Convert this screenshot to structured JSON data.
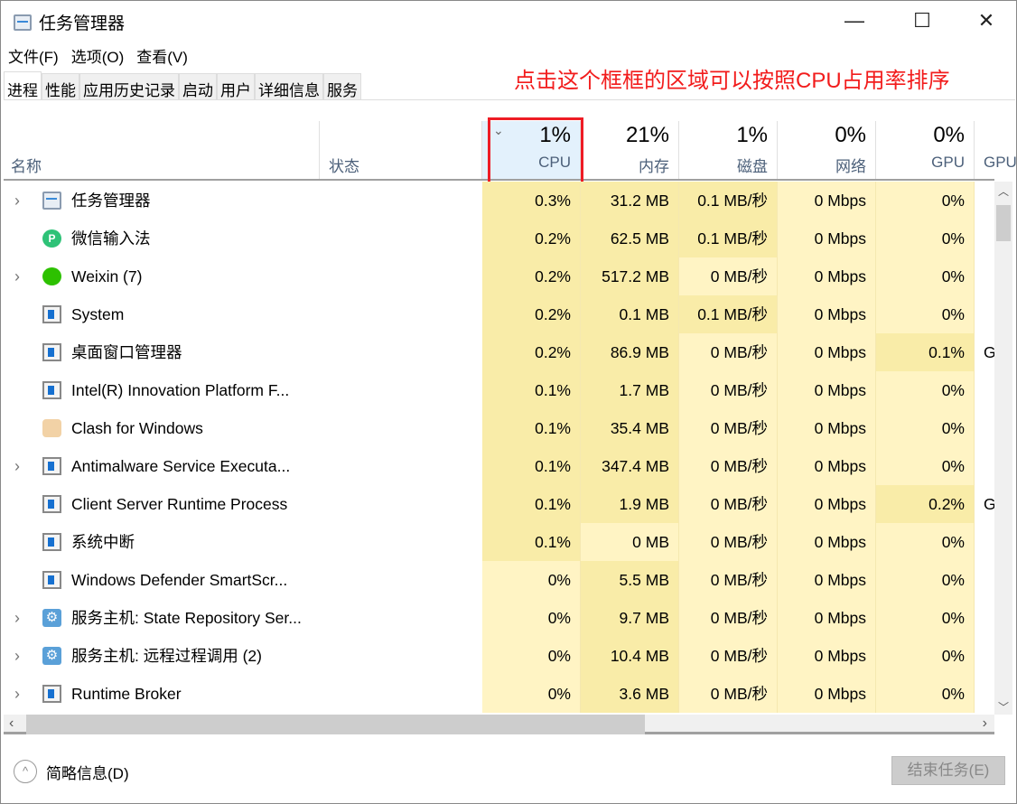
{
  "window": {
    "title": "任务管理器",
    "minimize": "—",
    "maximize": "☐",
    "close": "✕"
  },
  "menu": [
    "文件(F)",
    "选项(O)",
    "查看(V)"
  ],
  "tabs": [
    "进程",
    "性能",
    "应用历史记录",
    "启动",
    "用户",
    "详细信息",
    "服务"
  ],
  "annotation": "点击这个框框的区域可以按照CPU占用率排序",
  "annotation_color": "#f21c1c",
  "columns": {
    "name": "名称",
    "status": "状态",
    "cpu": {
      "pct": "1%",
      "label": "CPU",
      "sorted": true
    },
    "memory": {
      "pct": "21%",
      "label": "内存"
    },
    "disk": {
      "pct": "1%",
      "label": "磁盘"
    },
    "network": {
      "pct": "0%",
      "label": "网络"
    },
    "gpu": {
      "pct": "0%",
      "label": "GPU"
    },
    "gpu_engine": {
      "label": "GPU"
    }
  },
  "heat_colors": {
    "low": "#fff4c4",
    "high": "#f9eca8"
  },
  "rows": [
    {
      "expand": true,
      "icon": "task-manager-icon",
      "name": "任务管理器",
      "cpu": "0.3%",
      "mem": "31.2 MB",
      "disk": "0.1 MB/秒",
      "net": "0 Mbps",
      "gpu": "0%",
      "eng": "",
      "heat": [
        1,
        1,
        1,
        0,
        0
      ]
    },
    {
      "expand": false,
      "icon": "wechat-ime-icon",
      "name": "微信输入法",
      "cpu": "0.2%",
      "mem": "62.5 MB",
      "disk": "0.1 MB/秒",
      "net": "0 Mbps",
      "gpu": "0%",
      "eng": "",
      "heat": [
        1,
        1,
        1,
        0,
        0
      ]
    },
    {
      "expand": true,
      "icon": "weixin-icon",
      "name": "Weixin (7)",
      "cpu": "0.2%",
      "mem": "517.2 MB",
      "disk": "0 MB/秒",
      "net": "0 Mbps",
      "gpu": "0%",
      "eng": "",
      "heat": [
        1,
        1,
        0,
        0,
        0
      ]
    },
    {
      "expand": false,
      "icon": "window-icon",
      "name": "System",
      "cpu": "0.2%",
      "mem": "0.1 MB",
      "disk": "0.1 MB/秒",
      "net": "0 Mbps",
      "gpu": "0%",
      "eng": "",
      "heat": [
        1,
        1,
        1,
        0,
        0
      ]
    },
    {
      "expand": false,
      "icon": "window-icon",
      "name": "桌面窗口管理器",
      "cpu": "0.2%",
      "mem": "86.9 MB",
      "disk": "0 MB/秒",
      "net": "0 Mbps",
      "gpu": "0.1%",
      "eng": "G",
      "heat": [
        1,
        1,
        0,
        0,
        1
      ]
    },
    {
      "expand": false,
      "icon": "window-icon",
      "name": "Intel(R) Innovation Platform F...",
      "cpu": "0.1%",
      "mem": "1.7 MB",
      "disk": "0 MB/秒",
      "net": "0 Mbps",
      "gpu": "0%",
      "eng": "",
      "heat": [
        1,
        1,
        0,
        0,
        0
      ]
    },
    {
      "expand": false,
      "icon": "clash-cat-icon",
      "name": "Clash for Windows",
      "cpu": "0.1%",
      "mem": "35.4 MB",
      "disk": "0 MB/秒",
      "net": "0 Mbps",
      "gpu": "0%",
      "eng": "",
      "heat": [
        1,
        1,
        0,
        0,
        0
      ]
    },
    {
      "expand": true,
      "icon": "window-icon",
      "name": "Antimalware Service Executa...",
      "cpu": "0.1%",
      "mem": "347.4 MB",
      "disk": "0 MB/秒",
      "net": "0 Mbps",
      "gpu": "0%",
      "eng": "",
      "heat": [
        1,
        1,
        0,
        0,
        0
      ]
    },
    {
      "expand": false,
      "icon": "window-icon",
      "name": "Client Server Runtime Process",
      "cpu": "0.1%",
      "mem": "1.9 MB",
      "disk": "0 MB/秒",
      "net": "0 Mbps",
      "gpu": "0.2%",
      "eng": "G",
      "heat": [
        1,
        1,
        0,
        0,
        1
      ]
    },
    {
      "expand": false,
      "icon": "window-icon",
      "name": "系统中断",
      "cpu": "0.1%",
      "mem": "0 MB",
      "disk": "0 MB/秒",
      "net": "0 Mbps",
      "gpu": "0%",
      "eng": "",
      "heat": [
        1,
        0,
        0,
        0,
        0
      ]
    },
    {
      "expand": false,
      "icon": "window-icon",
      "name": "Windows Defender SmartScr...",
      "cpu": "0%",
      "mem": "5.5 MB",
      "disk": "0 MB/秒",
      "net": "0 Mbps",
      "gpu": "0%",
      "eng": "",
      "heat": [
        0,
        1,
        0,
        0,
        0
      ]
    },
    {
      "expand": true,
      "icon": "gear-icon",
      "name": "服务主机: State Repository Ser...",
      "cpu": "0%",
      "mem": "9.7 MB",
      "disk": "0 MB/秒",
      "net": "0 Mbps",
      "gpu": "0%",
      "eng": "",
      "heat": [
        0,
        1,
        0,
        0,
        0
      ]
    },
    {
      "expand": true,
      "icon": "gear-icon",
      "name": "服务主机: 远程过程调用 (2)",
      "cpu": "0%",
      "mem": "10.4 MB",
      "disk": "0 MB/秒",
      "net": "0 Mbps",
      "gpu": "0%",
      "eng": "",
      "heat": [
        0,
        1,
        0,
        0,
        0
      ]
    },
    {
      "expand": true,
      "icon": "window-icon",
      "name": "Runtime Broker",
      "cpu": "0%",
      "mem": "3.6 MB",
      "disk": "0 MB/秒",
      "net": "0 Mbps",
      "gpu": "0%",
      "eng": "",
      "heat": [
        0,
        1,
        0,
        0,
        0
      ]
    }
  ],
  "footer": {
    "fewer_details": "简略信息(D)",
    "end_task": "结束任务(E)"
  }
}
